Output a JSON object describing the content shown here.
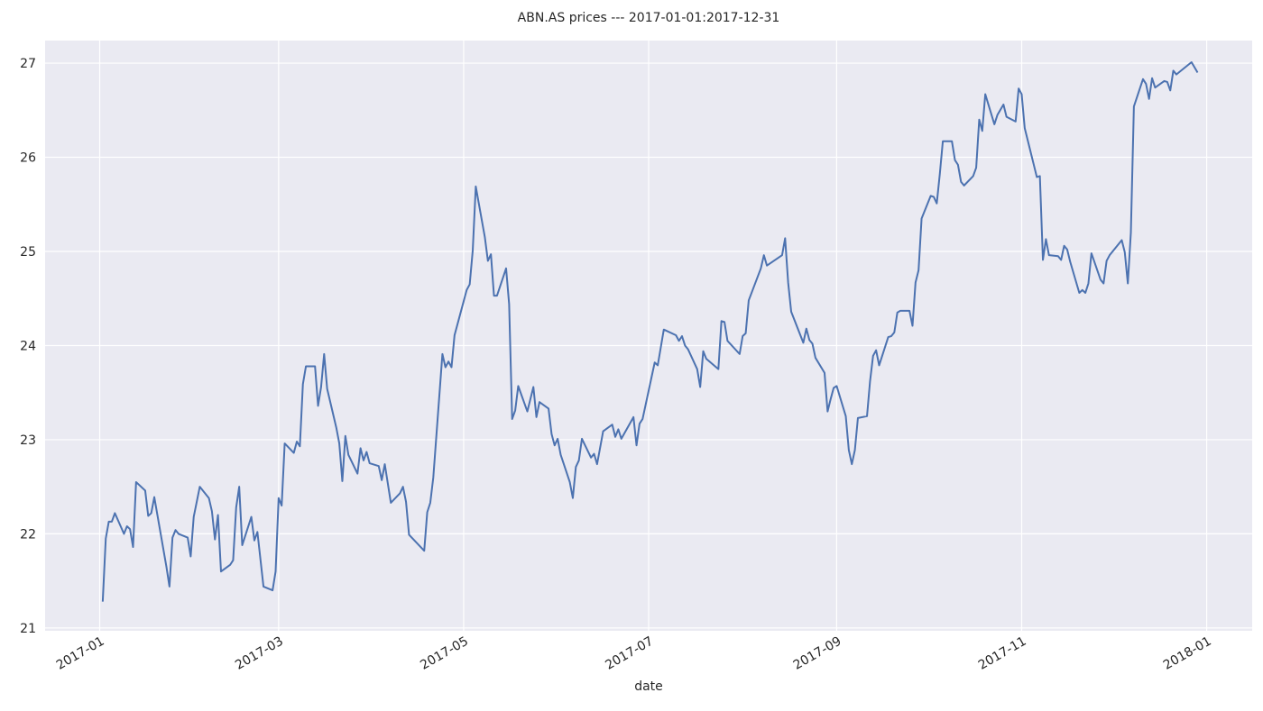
{
  "chart_data": {
    "type": "line",
    "title": "ABN.AS prices --- 2017-01-01:2017-12-31",
    "x_label": "date",
    "color": "#4c72b0",
    "grid": true,
    "background": "#eaeaf2",
    "xlim": [
      "2016-12-14",
      "2018-01-16"
    ],
    "ylim": [
      20.97,
      27.24
    ],
    "yticks": [
      21,
      22,
      23,
      24,
      25,
      26,
      27
    ],
    "xticks": [
      {
        "value": "2017-01-01",
        "label": "2017-01"
      },
      {
        "value": "2017-03-01",
        "label": "2017-03"
      },
      {
        "value": "2017-05-01",
        "label": "2017-05"
      },
      {
        "value": "2017-07-01",
        "label": "2017-07"
      },
      {
        "value": "2017-09-01",
        "label": "2017-09"
      },
      {
        "value": "2017-11-01",
        "label": "2017-11"
      },
      {
        "value": "2018-01-01",
        "label": "2018-01"
      }
    ],
    "x": [
      "2017-01-02",
      "2017-01-03",
      "2017-01-04",
      "2017-01-05",
      "2017-01-06",
      "2017-01-09",
      "2017-01-10",
      "2017-01-11",
      "2017-01-12",
      "2017-01-13",
      "2017-01-16",
      "2017-01-17",
      "2017-01-18",
      "2017-01-19",
      "2017-01-23",
      "2017-01-24",
      "2017-01-25",
      "2017-01-26",
      "2017-01-27",
      "2017-01-30",
      "2017-01-31",
      "2017-02-01",
      "2017-02-03",
      "2017-02-06",
      "2017-02-07",
      "2017-02-08",
      "2017-02-09",
      "2017-02-10",
      "2017-02-13",
      "2017-02-14",
      "2017-02-15",
      "2017-02-16",
      "2017-02-17",
      "2017-02-20",
      "2017-02-21",
      "2017-02-22",
      "2017-02-24",
      "2017-02-27",
      "2017-02-28",
      "2017-03-01",
      "2017-03-02",
      "2017-03-03",
      "2017-03-06",
      "2017-03-07",
      "2017-03-08",
      "2017-03-09",
      "2017-03-10",
      "2017-03-13",
      "2017-03-14",
      "2017-03-15",
      "2017-03-16",
      "2017-03-17",
      "2017-03-20",
      "2017-03-21",
      "2017-03-22",
      "2017-03-23",
      "2017-03-24",
      "2017-03-27",
      "2017-03-28",
      "2017-03-29",
      "2017-03-30",
      "2017-03-31",
      "2017-04-03",
      "2017-04-04",
      "2017-04-05",
      "2017-04-07",
      "2017-04-10",
      "2017-04-11",
      "2017-04-12",
      "2017-04-13",
      "2017-04-18",
      "2017-04-19",
      "2017-04-20",
      "2017-04-21",
      "2017-04-24",
      "2017-04-25",
      "2017-04-26",
      "2017-04-27",
      "2017-04-28",
      "2017-05-02",
      "2017-05-03",
      "2017-05-04",
      "2017-05-05",
      "2017-05-08",
      "2017-05-09",
      "2017-05-10",
      "2017-05-11",
      "2017-05-12",
      "2017-05-15",
      "2017-05-16",
      "2017-05-17",
      "2017-05-18",
      "2017-05-19",
      "2017-05-22",
      "2017-05-24",
      "2017-05-25",
      "2017-05-26",
      "2017-05-29",
      "2017-05-30",
      "2017-05-31",
      "2017-06-01",
      "2017-06-02",
      "2017-06-05",
      "2017-06-06",
      "2017-06-07",
      "2017-06-08",
      "2017-06-09",
      "2017-06-12",
      "2017-06-13",
      "2017-06-14",
      "2017-06-16",
      "2017-06-19",
      "2017-06-20",
      "2017-06-21",
      "2017-06-22",
      "2017-06-26",
      "2017-06-27",
      "2017-06-28",
      "2017-06-29",
      "2017-07-03",
      "2017-07-04",
      "2017-07-06",
      "2017-07-10",
      "2017-07-11",
      "2017-07-12",
      "2017-07-13",
      "2017-07-14",
      "2017-07-17",
      "2017-07-18",
      "2017-07-19",
      "2017-07-20",
      "2017-07-24",
      "2017-07-25",
      "2017-07-26",
      "2017-07-27",
      "2017-07-31",
      "2017-08-01",
      "2017-08-02",
      "2017-08-03",
      "2017-08-07",
      "2017-08-08",
      "2017-08-09",
      "2017-08-14",
      "2017-08-15",
      "2017-08-16",
      "2017-08-17",
      "2017-08-21",
      "2017-08-22",
      "2017-08-23",
      "2017-08-24",
      "2017-08-25",
      "2017-08-28",
      "2017-08-29",
      "2017-08-30",
      "2017-08-31",
      "2017-09-01",
      "2017-09-04",
      "2017-09-05",
      "2017-09-06",
      "2017-09-07",
      "2017-09-08",
      "2017-09-11",
      "2017-09-12",
      "2017-09-13",
      "2017-09-14",
      "2017-09-15",
      "2017-09-18",
      "2017-09-19",
      "2017-09-20",
      "2017-09-21",
      "2017-09-22",
      "2017-09-25",
      "2017-09-26",
      "2017-09-27",
      "2017-09-28",
      "2017-09-29",
      "2017-10-02",
      "2017-10-03",
      "2017-10-04",
      "2017-10-05",
      "2017-10-06",
      "2017-10-09",
      "2017-10-10",
      "2017-10-11",
      "2017-10-12",
      "2017-10-13",
      "2017-10-16",
      "2017-10-17",
      "2017-10-18",
      "2017-10-19",
      "2017-10-20",
      "2017-10-23",
      "2017-10-24",
      "2017-10-26",
      "2017-10-27",
      "2017-10-30",
      "2017-10-31",
      "2017-11-01",
      "2017-11-02",
      "2017-11-06",
      "2017-11-07",
      "2017-11-08",
      "2017-11-09",
      "2017-11-10",
      "2017-11-13",
      "2017-11-14",
      "2017-11-15",
      "2017-11-16",
      "2017-11-17",
      "2017-11-20",
      "2017-11-21",
      "2017-11-22",
      "2017-11-23",
      "2017-11-24",
      "2017-11-27",
      "2017-11-28",
      "2017-11-29",
      "2017-11-30",
      "2017-12-04",
      "2017-12-05",
      "2017-12-06",
      "2017-12-07",
      "2017-12-08",
      "2017-12-11",
      "2017-12-12",
      "2017-12-13",
      "2017-12-14",
      "2017-12-15",
      "2017-12-18",
      "2017-12-19",
      "2017-12-20",
      "2017-12-21",
      "2017-12-22",
      "2017-12-27",
      "2017-12-29"
    ],
    "values": [
      21.28,
      21.95,
      22.13,
      22.13,
      22.22,
      22.0,
      22.08,
      22.05,
      21.86,
      22.55,
      22.46,
      22.19,
      22.22,
      22.39,
      21.65,
      21.44,
      21.96,
      22.04,
      22.0,
      21.96,
      21.76,
      22.18,
      22.5,
      22.38,
      22.24,
      21.94,
      22.2,
      21.6,
      21.67,
      21.72,
      22.28,
      22.5,
      21.88,
      22.18,
      21.93,
      22.02,
      21.44,
      21.4,
      21.6,
      22.38,
      22.3,
      22.96,
      22.86,
      22.98,
      22.93,
      23.59,
      23.78,
      23.78,
      23.36,
      23.56,
      23.91,
      23.54,
      23.13,
      22.96,
      22.56,
      23.04,
      22.84,
      22.64,
      22.91,
      22.78,
      22.87,
      22.75,
      22.72,
      22.57,
      22.74,
      22.33,
      22.43,
      22.5,
      22.34,
      21.99,
      21.82,
      22.23,
      22.33,
      22.6,
      23.91,
      23.77,
      23.83,
      23.77,
      24.11,
      24.59,
      24.65,
      25.01,
      25.69,
      25.15,
      24.9,
      24.97,
      24.53,
      24.53,
      24.82,
      24.44,
      23.22,
      23.31,
      23.57,
      23.3,
      23.56,
      23.24,
      23.4,
      23.33,
      23.06,
      22.94,
      23.01,
      22.84,
      22.55,
      22.38,
      22.71,
      22.78,
      23.01,
      22.81,
      22.85,
      22.74,
      23.09,
      23.16,
      23.03,
      23.11,
      23.01,
      23.24,
      22.94,
      23.17,
      23.22,
      23.82,
      23.79,
      24.17,
      24.11,
      24.05,
      24.1,
      24.0,
      23.96,
      23.75,
      23.56,
      23.94,
      23.86,
      23.75,
      24.26,
      24.25,
      24.05,
      23.91,
      24.1,
      24.13,
      24.48,
      24.82,
      24.96,
      24.85,
      24.96,
      25.14,
      24.67,
      24.36,
      24.03,
      24.18,
      24.06,
      24.02,
      23.87,
      23.71,
      23.3,
      23.43,
      23.55,
      23.57,
      23.25,
      22.89,
      22.74,
      22.89,
      23.23,
      23.25,
      23.62,
      23.89,
      23.95,
      23.79,
      24.09,
      24.1,
      24.14,
      24.35,
      24.37,
      24.37,
      24.21,
      24.67,
      24.8,
      25.35,
      25.59,
      25.58,
      25.51,
      25.82,
      26.17,
      26.17,
      25.97,
      25.92,
      25.74,
      25.7,
      25.8,
      25.89,
      26.4,
      26.28,
      26.67,
      26.35,
      26.45,
      26.56,
      26.43,
      26.38,
      26.73,
      26.67,
      26.31,
      25.79,
      25.8,
      24.91,
      25.13,
      24.96,
      24.95,
      24.91,
      25.06,
      25.02,
      24.89,
      24.56,
      24.59,
      24.56,
      24.66,
      24.98,
      24.7,
      24.66,
      24.9,
      24.96,
      25.12,
      24.99,
      24.66,
      25.2,
      26.54,
      26.83,
      26.78,
      26.62,
      26.84,
      26.74,
      26.81,
      26.8,
      26.71,
      26.92,
      26.88,
      27.01,
      26.9
    ]
  }
}
